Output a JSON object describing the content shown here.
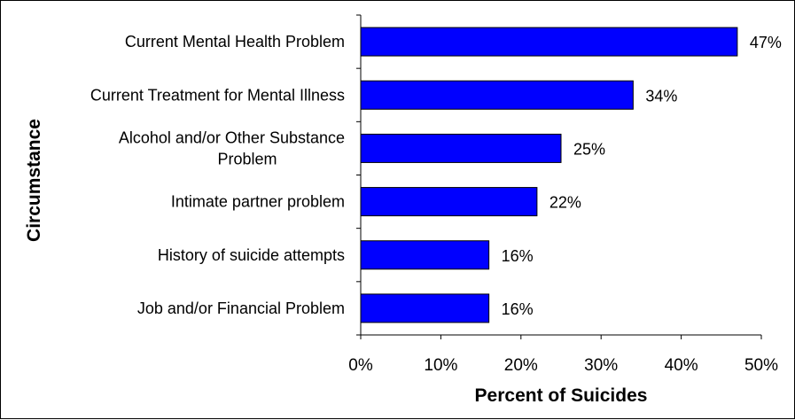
{
  "chart_data": {
    "type": "bar",
    "orientation": "horizontal",
    "categories": [
      [
        "Current Mental Health Problem"
      ],
      [
        "Current Treatment for Mental Illness"
      ],
      [
        "Alcohol and/or Other Substance",
        "Problem"
      ],
      [
        "Intimate partner problem"
      ],
      [
        "History of suicide attempts"
      ],
      [
        "Job and/or Financial Problem"
      ]
    ],
    "values": [
      47,
      34,
      25,
      22,
      16,
      16
    ],
    "data_labels": [
      "47%",
      "34%",
      "25%",
      "22%",
      "16%",
      "16%"
    ],
    "xlabel": "Percent of Suicides",
    "ylabel": "Circumstance",
    "xlim": [
      0,
      50
    ],
    "x_ticks": [
      0,
      10,
      20,
      30,
      40,
      50
    ],
    "x_tick_labels": [
      "0%",
      "10%",
      "20%",
      "30%",
      "40%",
      "50%"
    ],
    "grid": false,
    "bar_color": "#0000FF",
    "bar_edge_color": "#000000"
  }
}
